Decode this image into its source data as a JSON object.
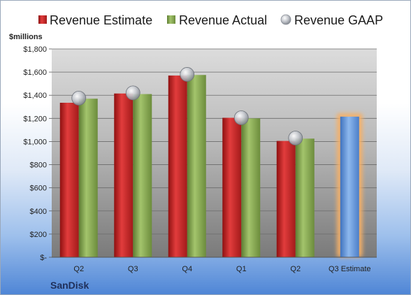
{
  "chart_data": {
    "type": "bar",
    "unit_label": "$millions",
    "brand": "SanDisk",
    "categories": [
      "Q2",
      "Q3",
      "Q4",
      "Q1",
      "Q2",
      "Q3 Estimate"
    ],
    "series": [
      {
        "name": "Revenue Estimate",
        "kind": "bar",
        "color": "#d42a2a",
        "values": [
          1335,
          1415,
          1570,
          1205,
          1005,
          null
        ]
      },
      {
        "name": "Revenue Actual",
        "kind": "bar",
        "color": "#8cae58",
        "values": [
          1370,
          1410,
          1575,
          1200,
          1025,
          null
        ]
      },
      {
        "name": "Revenue GAAP",
        "kind": "marker",
        "color": "#b8bcc4",
        "values": [
          1375,
          1420,
          1580,
          1205,
          1030,
          null
        ]
      }
    ],
    "projection": {
      "category": "Q3 Estimate",
      "value": 1215,
      "color": "#6f9fdc",
      "glow": "#f6b066"
    },
    "ylim": [
      0,
      1800
    ],
    "yticks": [
      0,
      200,
      400,
      600,
      800,
      1000,
      1200,
      1400,
      1600,
      1800
    ],
    "ytick_labels": [
      "$-",
      "$200",
      "$400",
      "$600",
      "$800",
      "$1,000",
      "$1,200",
      "$1,400",
      "$1,600",
      "$1,800"
    ],
    "grid": true,
    "legend": "top"
  }
}
